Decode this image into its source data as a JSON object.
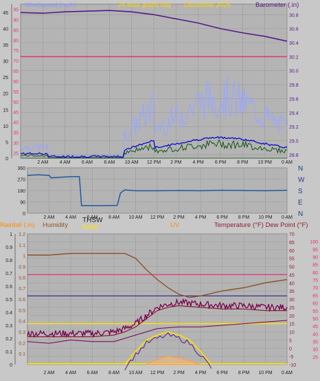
{
  "header": {
    "windspeed_label": "Windspeed (mph)",
    "period_label": "24 hour graph day",
    "date_label": "December 2025",
    "barometer_label": "Barometer (.in)"
  },
  "middle": {
    "thsw_label": "THSW",
    "solar_label": "Solar"
  },
  "lower_header": {
    "rainfall_label": "Rainfall (.in)",
    "humidity_label": "Humidity",
    "uv_label": "UV",
    "temperature_label": "Temperature (°F) Dew Point (°F)"
  },
  "colors": {
    "panel": "#b4b4b4",
    "barometer": "#55188c",
    "windspeed": "#e8307a",
    "wind_gust": "#9aa6ff",
    "wind_avg": "#1414c8",
    "wind_low": "#1e5a1e",
    "direction": "#1a5aa0",
    "rain": "#ff8c00",
    "solar": "#ffe000",
    "humidity": "#8c5228",
    "temperature": "#8c1e32",
    "dewpoint": "#780050",
    "uv": "#ffa040"
  },
  "chart_data": [
    {
      "type": "line",
      "x_ticks": [
        "2 AM",
        "4 AM",
        "6 AM",
        "8 AM",
        "10 AM",
        "12 PM",
        "2 PM",
        "4 PM",
        "6 PM",
        "8 PM",
        "10 PM",
        "0 AM"
      ],
      "left_axis": {
        "label": "Windspeed (mph)",
        "ticks": [
          25,
          30,
          35,
          40,
          45,
          50,
          55,
          60,
          65,
          70,
          75,
          80,
          85,
          90,
          95
        ],
        "ylim": [
          22.5,
          97.5
        ]
      },
      "left_outer_axis": {
        "ticks": [
          0,
          5,
          10,
          15,
          20,
          25,
          30,
          35,
          40,
          45
        ],
        "ylim": [
          0,
          47.5
        ]
      },
      "right_axis": {
        "label": "Barometer (.in)",
        "ticks": [
          28.8,
          29.0,
          29.2,
          29.4,
          29.6,
          29.8,
          30.0,
          30.2,
          30.4,
          30.6,
          30.8
        ],
        "ylim": [
          28.75,
          30.95
        ]
      },
      "series": [
        {
          "name": "Barometer (.in)",
          "x_hours": [
            0,
            2,
            4,
            6,
            8,
            10,
            12,
            14,
            16,
            18,
            20,
            22,
            24
          ],
          "values": [
            30.83,
            30.82,
            30.84,
            30.85,
            30.86,
            30.84,
            30.8,
            30.74,
            30.68,
            30.6,
            30.54,
            30.49,
            30.42
          ]
        },
        {
          "name": "Windspeed (mph)",
          "x_hours": [
            0,
            24
          ],
          "values": [
            30.2,
            30.2
          ]
        }
      ]
    },
    {
      "type": "line",
      "x_ticks": [
        "2 AM",
        "4 AM",
        "6 AM",
        "8 AM",
        "10 AM",
        "12 PM",
        "2 PM",
        "4 PM",
        "6 PM",
        "8 PM",
        "10 PM",
        "0 AM"
      ],
      "left_axis": {
        "ticks": [
          0,
          90,
          180,
          270,
          360
        ],
        "ylim": [
          0,
          360
        ]
      },
      "right_axis": {
        "ticks": [
          "N",
          "W",
          "S",
          "E",
          "N"
        ]
      },
      "series": [
        {
          "x_hours": [
            0,
            1,
            2,
            2.2,
            3,
            4,
            4.8,
            5,
            7,
            8.3,
            8.6,
            9,
            10,
            12,
            14,
            16,
            18,
            20,
            22,
            24
          ],
          "values": [
            300,
            305,
            300,
            280,
            285,
            290,
            290,
            60,
            60,
            62,
            160,
            185,
            178,
            178,
            180,
            178,
            182,
            180,
            178,
            182
          ]
        }
      ]
    },
    {
      "type": "line",
      "x_ticks": [
        "2 AM",
        "4 AM",
        "6 AM",
        "8 AM",
        "10 AM",
        "12 PM",
        "2 PM",
        "4 PM",
        "6 PM",
        "8 PM",
        "10 PM",
        "0 AM"
      ],
      "left_axis": {
        "label": "Rainfall (.in)",
        "ticks": [
          0,
          0.1,
          0.2,
          0.3,
          0.4,
          0.5,
          0.6,
          0.7,
          0.8,
          0.9,
          1.0
        ],
        "ylim": [
          0,
          1.0
        ]
      },
      "left_inner_axis": {
        "label": "Humidity",
        "ticks": [
          0.1,
          0.2,
          0.3,
          0.4,
          0.5,
          0.6,
          0.7,
          0.8,
          0.9,
          1.0,
          1.1,
          1.2
        ],
        "ylim": [
          0,
          1.2
        ]
      },
      "right_axis": {
        "label": "Temperature (°F) Dew Point (°F)",
        "ticks": [
          -10,
          -5,
          0,
          5,
          10,
          15,
          20,
          25,
          30,
          35,
          40,
          45,
          50,
          55,
          60,
          65,
          70
        ],
        "ylim": [
          -10,
          70
        ]
      },
      "right_outer_axis": {
        "ticks": [
          25,
          30,
          35,
          40,
          45,
          50,
          55,
          60,
          65,
          70,
          75,
          80,
          85,
          90,
          95,
          100
        ],
        "ylim": [
          20,
          105
        ]
      },
      "series": [
        {
          "name": "Humidity",
          "x_hours": [
            0,
            2,
            4,
            6,
            8,
            9,
            10,
            11,
            12,
            13,
            14,
            15,
            16,
            18,
            20,
            22,
            24
          ],
          "values": [
            57,
            57,
            58,
            58,
            58,
            58,
            55,
            48,
            42,
            37,
            33,
            31,
            32,
            35,
            37,
            40,
            42
          ]
        },
        {
          "name": "Temperature (°F)",
          "x_hours": [
            0,
            2,
            4,
            6,
            8,
            9,
            10,
            11,
            12,
            13,
            14,
            16,
            18,
            20,
            22,
            24
          ],
          "values": [
            7,
            7,
            7,
            7,
            8,
            10,
            13,
            18,
            23,
            25,
            26,
            25,
            24,
            24,
            23,
            23
          ]
        },
        {
          "name": "Dew Point (°F)",
          "x_hours": [
            0,
            2,
            4,
            6,
            8,
            9,
            10,
            12,
            14,
            16,
            18,
            20,
            22,
            24
          ],
          "values": [
            4,
            3,
            5,
            4,
            4,
            6,
            8,
            12,
            13,
            13,
            14,
            15,
            16,
            17
          ]
        },
        {
          "name": "Solar",
          "x_hours": [
            9,
            10,
            11,
            12,
            13,
            14,
            15,
            16,
            17
          ],
          "values": [
            -10,
            -2,
            5,
            8,
            10,
            8,
            5,
            -2,
            -10
          ]
        },
        {
          "name": "UV",
          "x_hours": [
            11,
            12,
            13,
            14,
            15,
            16
          ],
          "values": [
            -10,
            -7,
            -5,
            -6,
            -8,
            -10
          ]
        }
      ]
    }
  ]
}
